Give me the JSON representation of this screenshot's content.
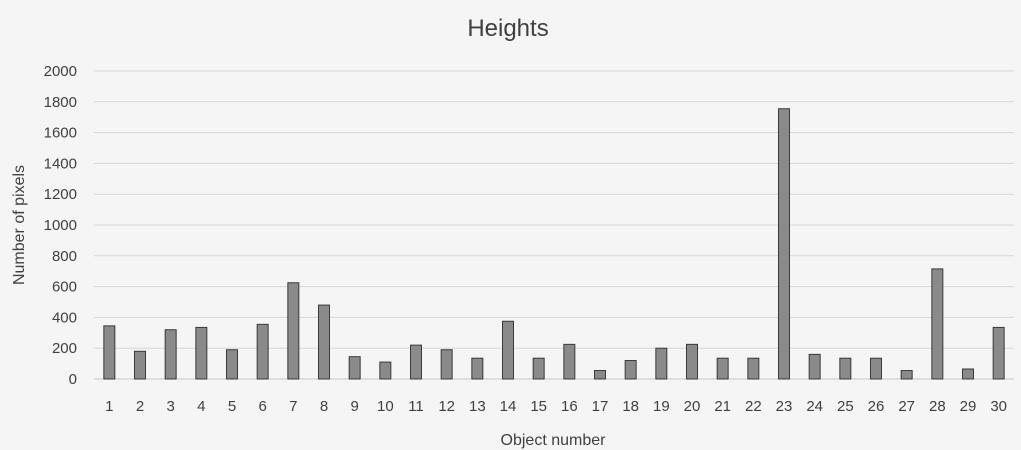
{
  "chart_data": {
    "type": "bar",
    "title": "Heights",
    "xlabel": "Object number",
    "ylabel": "Number  of pixels",
    "ylim": [
      0,
      2000
    ],
    "yticks": [
      "0",
      "200",
      "400",
      "600",
      "800",
      "1000",
      "1200",
      "1400",
      "1600",
      "1800",
      "2000"
    ],
    "grid": true,
    "categories": [
      "1",
      "2",
      "3",
      "4",
      "5",
      "6",
      "7",
      "8",
      "9",
      "10",
      "11",
      "12",
      "13",
      "14",
      "15",
      "16",
      "17",
      "18",
      "19",
      "20",
      "21",
      "22",
      "23",
      "24",
      "25",
      "26",
      "27",
      "28",
      "29",
      "30"
    ],
    "values": [
      345,
      180,
      320,
      335,
      190,
      355,
      625,
      480,
      145,
      110,
      220,
      190,
      135,
      375,
      135,
      225,
      55,
      120,
      200,
      225,
      135,
      135,
      1755,
      160,
      135,
      135,
      55,
      715,
      65,
      335
    ]
  }
}
